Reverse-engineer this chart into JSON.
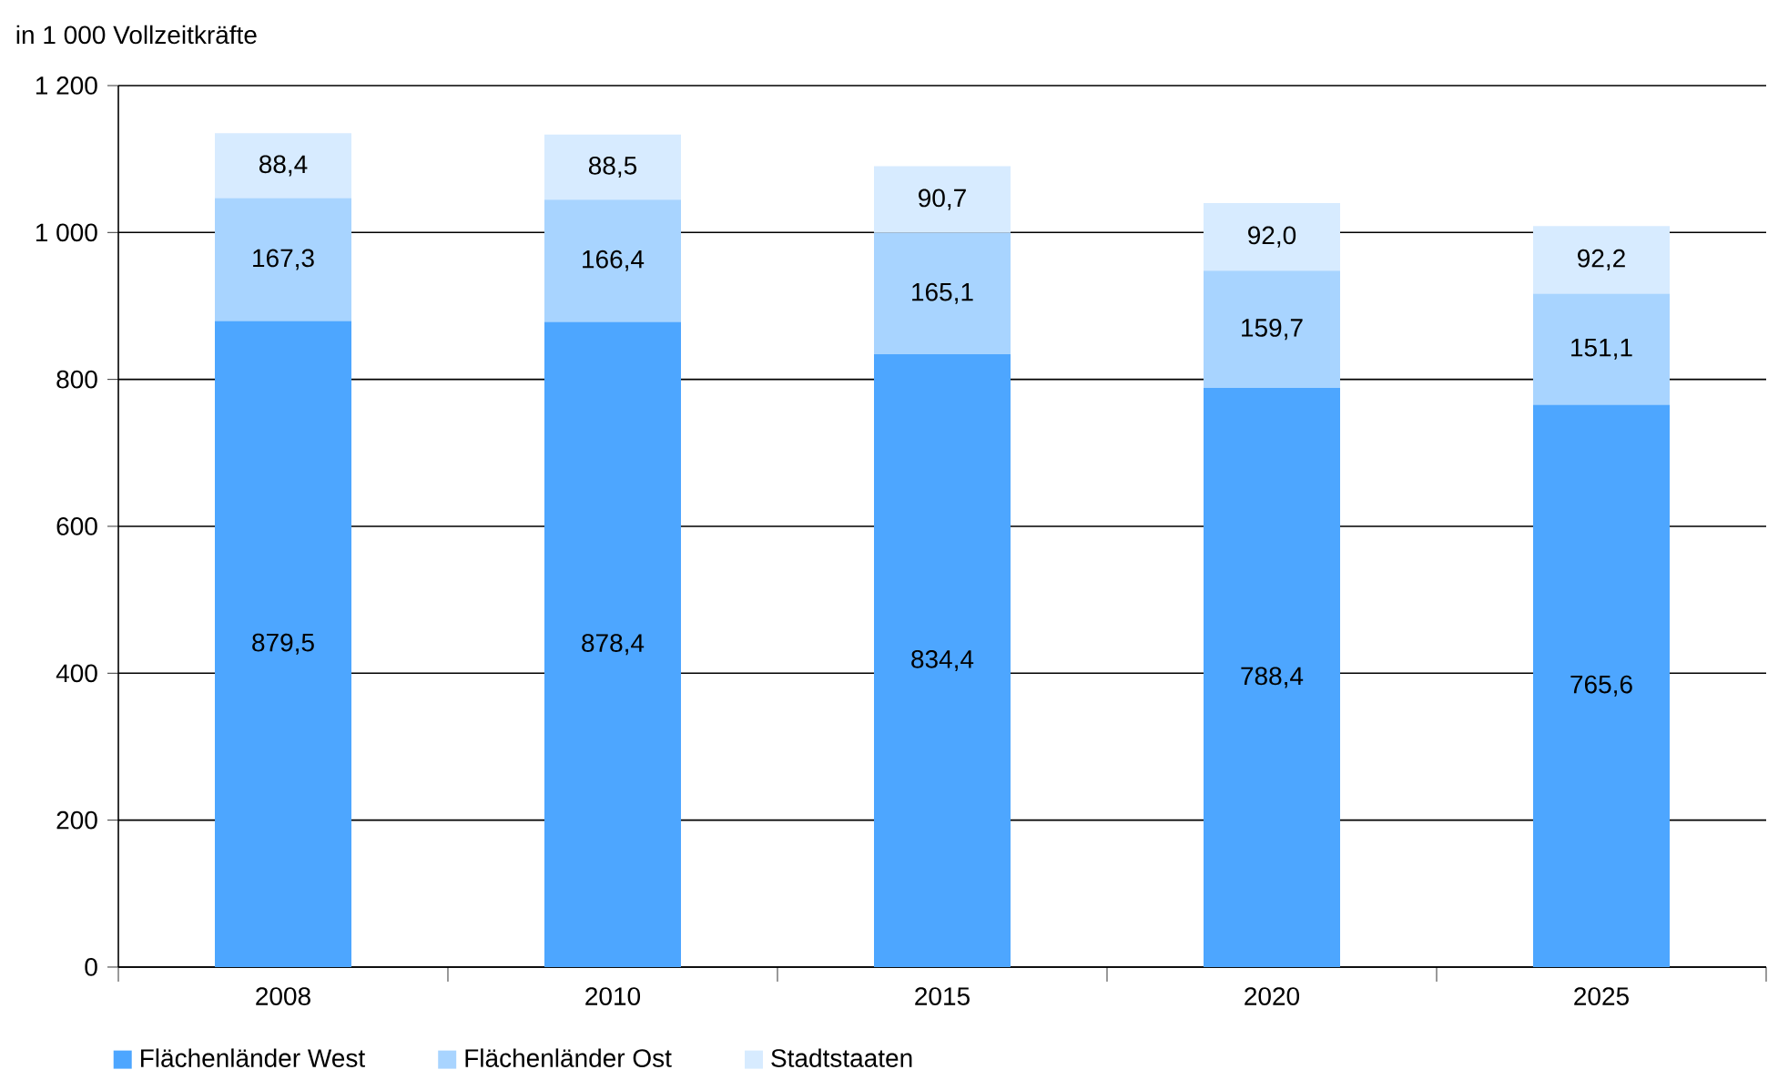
{
  "chart_data": {
    "type": "bar",
    "stacked": true,
    "ylabel": "in 1 000 Vollzeitkräfte",
    "categories": [
      "2008",
      "2010",
      "2015",
      "2020",
      "2025"
    ],
    "series": [
      {
        "name": "Flächenländer West",
        "color": "#4da6ff",
        "values": [
          879.5,
          878.4,
          834.4,
          788.4,
          765.6
        ],
        "value_labels": [
          "879,5",
          "878,4",
          "834,4",
          "788,4",
          "765,6"
        ]
      },
      {
        "name": "Flächenländer Ost",
        "color": "#a8d4ff",
        "values": [
          167.3,
          166.4,
          165.1,
          159.7,
          151.1
        ],
        "value_labels": [
          "167,3",
          "166,4",
          "165,1",
          "159,7",
          "151,1"
        ]
      },
      {
        "name": "Stadtstaaten",
        "color": "#d7ebff",
        "values": [
          88.4,
          88.5,
          90.7,
          92.0,
          92.2
        ],
        "value_labels": [
          "88,4",
          "88,5",
          "90,7",
          "92,0",
          "92,2"
        ]
      }
    ],
    "ylim": [
      0,
      1200
    ],
    "yticks": [
      0,
      200,
      400,
      600,
      800,
      {
        "value": 1000,
        "label": "1 000"
      },
      {
        "value": 1200,
        "label": "1 200"
      }
    ],
    "grid": "y",
    "legend": "bottom left"
  }
}
